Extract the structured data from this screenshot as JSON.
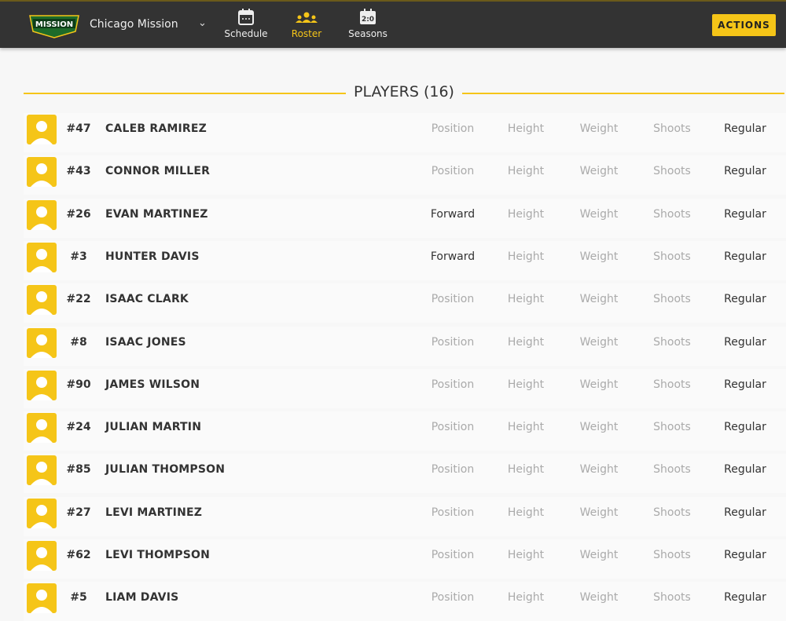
{
  "header": {
    "team_name": "Chicago Mission",
    "logo_text": "MISSION",
    "nav": [
      {
        "label": "Schedule",
        "icon": "calendar-icon"
      },
      {
        "label": "Roster",
        "icon": "people-icon",
        "active": true
      },
      {
        "label": "Seasons",
        "icon": "scoreboard-icon"
      }
    ],
    "actions_label": "ACTIONS",
    "accent": "#f5c518"
  },
  "roster": {
    "title": "PLAYERS (16)",
    "players": [
      {
        "number": "#47",
        "name": "CALEB RAMIREZ",
        "position": "Position",
        "height": "Height",
        "weight": "Weight",
        "shoots": "Shoots",
        "status": "Regular"
      },
      {
        "number": "#43",
        "name": "CONNOR MILLER",
        "position": "Position",
        "height": "Height",
        "weight": "Weight",
        "shoots": "Shoots",
        "status": "Regular"
      },
      {
        "number": "#26",
        "name": "EVAN MARTINEZ",
        "position": "Forward",
        "height": "Height",
        "weight": "Weight",
        "shoots": "Shoots",
        "status": "Regular"
      },
      {
        "number": "#3",
        "name": "HUNTER DAVIS",
        "position": "Forward",
        "height": "Height",
        "weight": "Weight",
        "shoots": "Shoots",
        "status": "Regular"
      },
      {
        "number": "#22",
        "name": "ISAAC CLARK",
        "position": "Position",
        "height": "Height",
        "weight": "Weight",
        "shoots": "Shoots",
        "status": "Regular"
      },
      {
        "number": "#8",
        "name": "ISAAC JONES",
        "position": "Position",
        "height": "Height",
        "weight": "Weight",
        "shoots": "Shoots",
        "status": "Regular"
      },
      {
        "number": "#90",
        "name": "JAMES WILSON",
        "position": "Position",
        "height": "Height",
        "weight": "Weight",
        "shoots": "Shoots",
        "status": "Regular"
      },
      {
        "number": "#24",
        "name": "JULIAN MARTIN",
        "position": "Position",
        "height": "Height",
        "weight": "Weight",
        "shoots": "Shoots",
        "status": "Regular"
      },
      {
        "number": "#85",
        "name": "JULIAN THOMPSON",
        "position": "Position",
        "height": "Height",
        "weight": "Weight",
        "shoots": "Shoots",
        "status": "Regular"
      },
      {
        "number": "#27",
        "name": "LEVI MARTINEZ",
        "position": "Position",
        "height": "Height",
        "weight": "Weight",
        "shoots": "Shoots",
        "status": "Regular"
      },
      {
        "number": "#62",
        "name": "LEVI THOMPSON",
        "position": "Position",
        "height": "Height",
        "weight": "Weight",
        "shoots": "Shoots",
        "status": "Regular"
      },
      {
        "number": "#5",
        "name": "LIAM DAVIS",
        "position": "Position",
        "height": "Height",
        "weight": "Weight",
        "shoots": "Shoots",
        "status": "Regular"
      }
    ]
  }
}
